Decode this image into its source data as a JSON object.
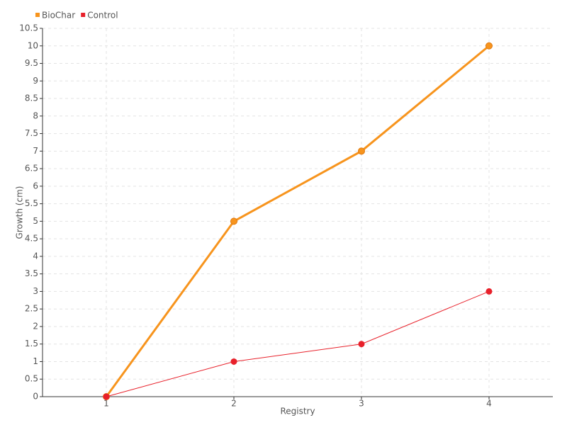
{
  "chart_data": {
    "type": "line",
    "x_label": "Registry",
    "y_label": "Growth (cm)",
    "x": [
      1,
      2,
      3,
      4
    ],
    "xlim": [
      0.5,
      4.5
    ],
    "xticks": [
      1,
      2,
      3,
      4
    ],
    "ylim": [
      0,
      10.5
    ],
    "yticks": [
      0,
      0.5,
      1,
      1.5,
      2,
      2.5,
      3,
      3.5,
      4,
      4.5,
      5,
      5.5,
      6,
      6.5,
      7,
      7.5,
      8,
      8.5,
      9,
      9.5,
      10,
      10.5
    ],
    "grid": true,
    "legend": "top-left",
    "series": [
      {
        "name": "BioChar",
        "color": "#f7941d",
        "values": [
          0,
          5,
          7,
          10
        ]
      },
      {
        "name": "Control",
        "color": "#e8202a",
        "values": [
          0,
          1,
          1.5,
          3
        ]
      }
    ]
  }
}
